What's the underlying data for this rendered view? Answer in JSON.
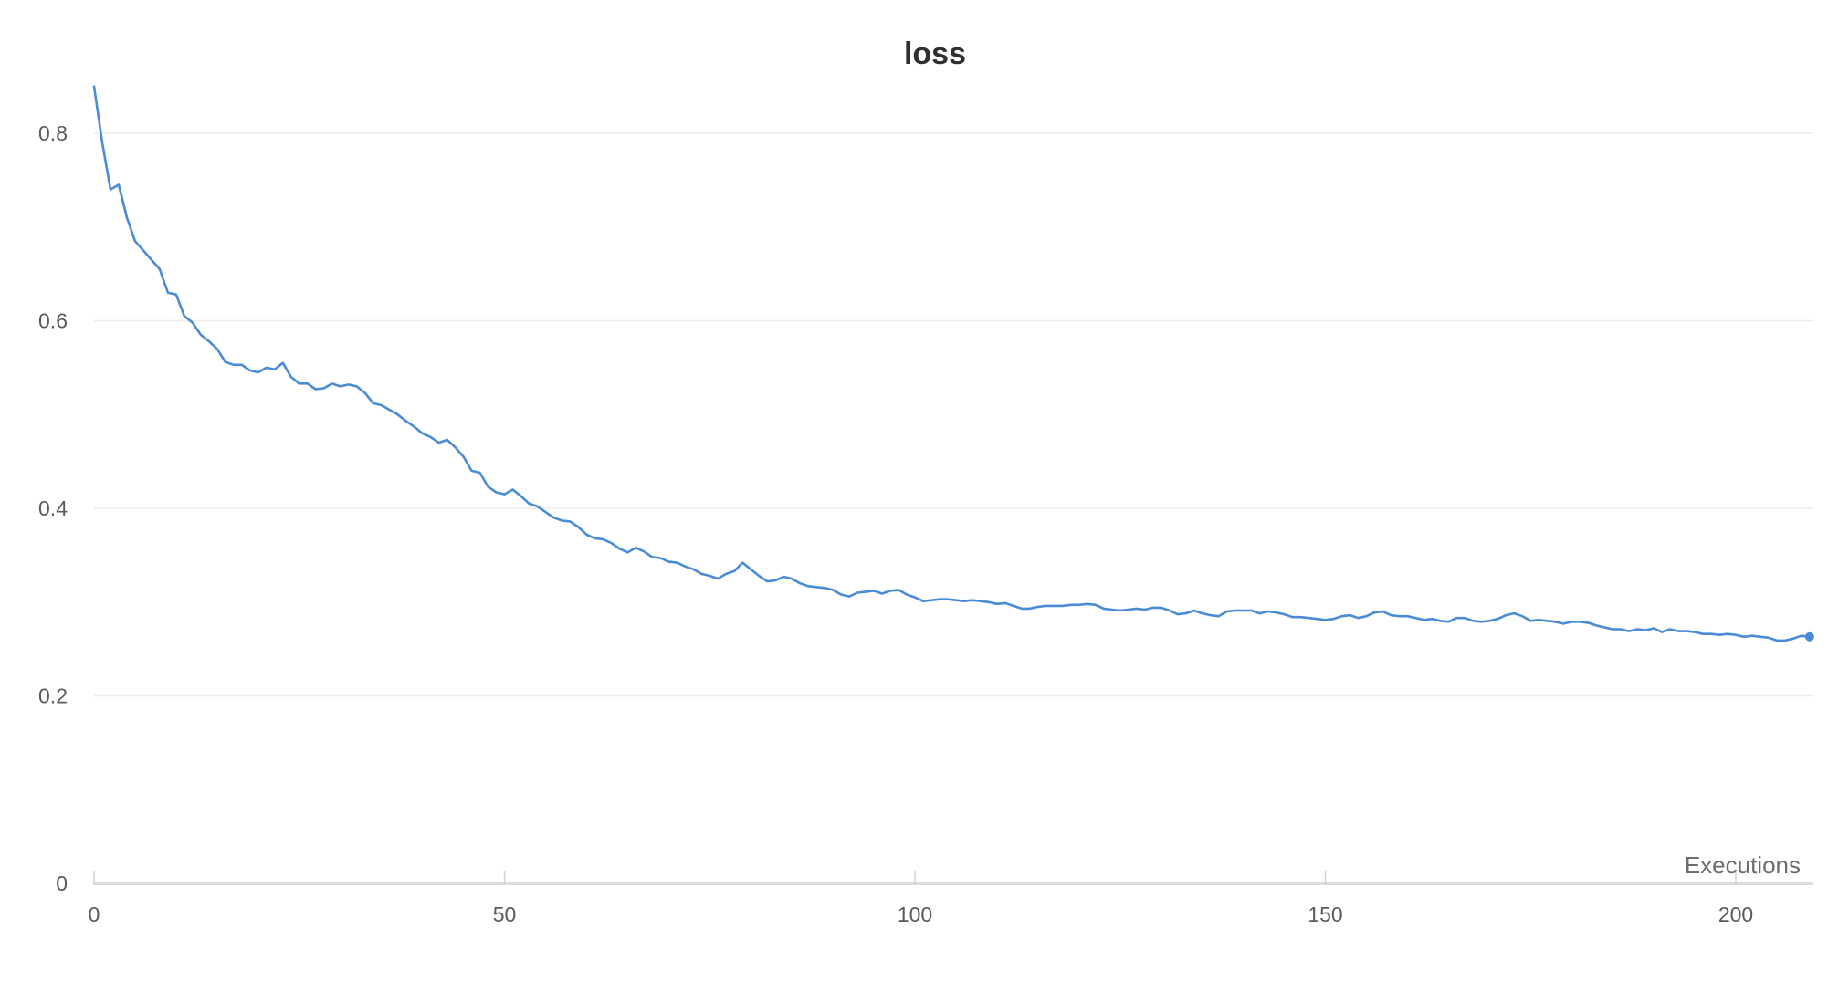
{
  "chart_data": {
    "type": "line",
    "title": "loss",
    "xlabel": "Executions",
    "ylabel": "",
    "xlim": [
      0,
      209
    ],
    "ylim": [
      0,
      0.85
    ],
    "x_ticks": [
      0,
      50,
      100,
      150,
      200
    ],
    "y_ticks": [
      0,
      0.2,
      0.4,
      0.6,
      0.8
    ],
    "x_tick_labels": [
      "0",
      "50",
      "100",
      "150",
      "200"
    ],
    "y_tick_labels": [
      "0",
      "0.2",
      "0.4",
      "0.6",
      "0.8"
    ],
    "grid": true,
    "line_color": "#4a8bd6",
    "series": [
      {
        "values": [
          0.85,
          0.79,
          0.74,
          0.745,
          0.71,
          0.685,
          0.675,
          0.665,
          0.655,
          0.63,
          0.628,
          0.605,
          0.598,
          0.585,
          0.578,
          0.57,
          0.556,
          0.553,
          0.553,
          0.547,
          0.545,
          0.55,
          0.548,
          0.555,
          0.54,
          0.533,
          0.533,
          0.527,
          0.528,
          0.533,
          0.53,
          0.532,
          0.53,
          0.523,
          0.512,
          0.51,
          0.505,
          0.5,
          0.493,
          0.487,
          0.48,
          0.476,
          0.47,
          0.473,
          0.465,
          0.455,
          0.44,
          0.438,
          0.423,
          0.417,
          0.415,
          0.42,
          0.413,
          0.405,
          0.402,
          0.396,
          0.39,
          0.387,
          0.386,
          0.38,
          0.372,
          0.368,
          0.367,
          0.363,
          0.357,
          0.353,
          0.358,
          0.354,
          0.348,
          0.347,
          0.343,
          0.342,
          0.338,
          0.335,
          0.33,
          0.328,
          0.325,
          0.33,
          0.333,
          0.342,
          0.335,
          0.328,
          0.322,
          0.323,
          0.327,
          0.325,
          0.32,
          0.317,
          0.316,
          0.315,
          0.313,
          0.308,
          0.306,
          0.31,
          0.311,
          0.312,
          0.309,
          0.312,
          0.313,
          0.308,
          0.305,
          0.301,
          0.302,
          0.303,
          0.303,
          0.302,
          0.301,
          0.302,
          0.301,
          0.3,
          0.298,
          0.299,
          0.296,
          0.293,
          0.293,
          0.295,
          0.296,
          0.296,
          0.296,
          0.297,
          0.297,
          0.298,
          0.297,
          0.293,
          0.292,
          0.291,
          0.292,
          0.293,
          0.292,
          0.294,
          0.294,
          0.291,
          0.287,
          0.288,
          0.291,
          0.288,
          0.286,
          0.285,
          0.29,
          0.291,
          0.291,
          0.291,
          0.288,
          0.29,
          0.289,
          0.287,
          0.284,
          0.284,
          0.283,
          0.282,
          0.281,
          0.282,
          0.285,
          0.286,
          0.283,
          0.285,
          0.289,
          0.29,
          0.286,
          0.285,
          0.285,
          0.283,
          0.281,
          0.282,
          0.28,
          0.279,
          0.283,
          0.283,
          0.28,
          0.279,
          0.28,
          0.282,
          0.286,
          0.288,
          0.285,
          0.28,
          0.281,
          0.28,
          0.279,
          0.277,
          0.279,
          0.279,
          0.278,
          0.275,
          0.273,
          0.271,
          0.271,
          0.269,
          0.271,
          0.27,
          0.272,
          0.268,
          0.271,
          0.269,
          0.269,
          0.268,
          0.266,
          0.266,
          0.265,
          0.266,
          0.265,
          0.263,
          0.264,
          0.263,
          0.262,
          0.259,
          0.259,
          0.261,
          0.264,
          0.263
        ]
      }
    ]
  }
}
